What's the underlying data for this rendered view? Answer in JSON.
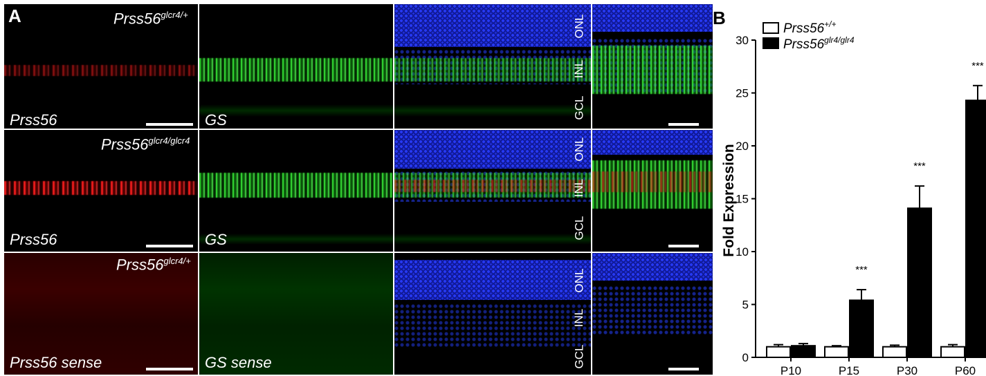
{
  "panel_a": {
    "letter": "A",
    "rows": [
      {
        "genotype_base": "Prss56",
        "genotype_sup": "glcr4/+",
        "red_label": "Prss56",
        "green_label": "GS",
        "layers": [
          "ONL",
          "INL",
          "GCL"
        ]
      },
      {
        "genotype_base": "Prss56",
        "genotype_sup": "glcr4/glcr4",
        "red_label": "Prss56",
        "green_label": "GS",
        "layers": [
          "ONL",
          "INL",
          "GCL"
        ]
      },
      {
        "genotype_base": "Prss56",
        "genotype_sup": "glcr4/+",
        "red_label": "Prss56 sense",
        "green_label": "GS sense",
        "layers": [
          "ONL",
          "INL",
          "GCL"
        ]
      }
    ]
  },
  "panel_b": {
    "letter": "B"
  },
  "chart_data": {
    "type": "bar",
    "categories": [
      "P10",
      "P15",
      "P30",
      "P60"
    ],
    "ylabel": "Fold Expression",
    "ylim": [
      0,
      30
    ],
    "yticks": [
      0,
      5,
      10,
      15,
      20,
      25,
      30
    ],
    "legend_position": "top-left",
    "series": [
      {
        "legend_base": "Prss56",
        "legend_sup": "+/+",
        "color": "#ffffff",
        "edge": "#000000",
        "values": [
          1.0,
          1.0,
          1.0,
          1.0
        ],
        "errors": [
          0.2,
          0.1,
          0.15,
          0.2
        ]
      },
      {
        "legend_base": "Prss56",
        "legend_sup": "glr4/glr4",
        "color": "#000000",
        "edge": "#000000",
        "values": [
          1.1,
          5.4,
          14.1,
          24.3
        ],
        "errors": [
          0.2,
          1.0,
          2.1,
          1.4
        ]
      }
    ],
    "significance": [
      "",
      "***",
      "***",
      "***"
    ]
  }
}
